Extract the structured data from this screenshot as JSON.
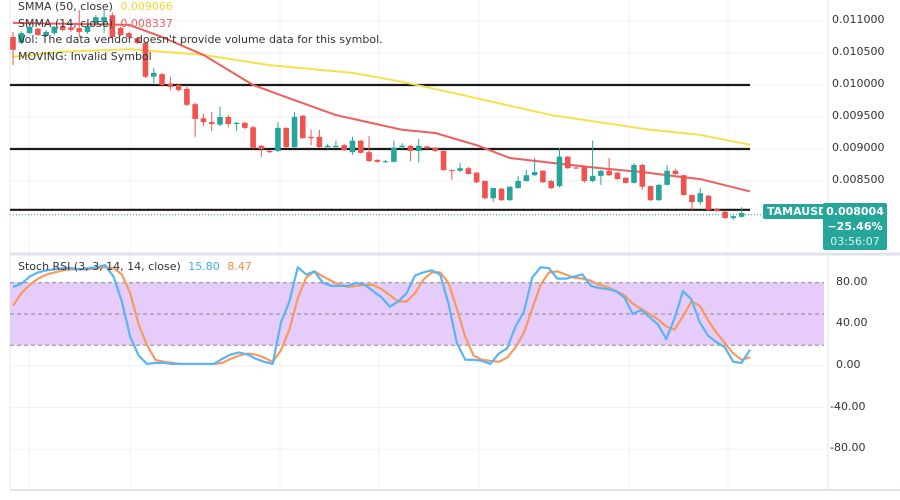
{
  "symbol": "TAMAUSD",
  "price_scale": {
    "labels": [
      "0.011000",
      "0.010500",
      "0.010000",
      "0.009500",
      "0.009000",
      "0.008500"
    ],
    "values": [
      0.011,
      0.0105,
      0.01,
      0.0095,
      0.009,
      0.0085
    ],
    "last_price": "0.008004",
    "change": "−25.46%",
    "countdown": "03:56:07"
  },
  "legend": {
    "smma50": {
      "label": "SMMA (50, close)",
      "value": "0.009066",
      "color": "#f7e14a"
    },
    "smma14": {
      "label": "SMMA (14, close)",
      "value": "0.008337",
      "color": "#f25c5c"
    },
    "vol": "Vol: The data vendor doesn't provide volume data for this symbol.",
    "moving": "MOVING: Invalid Symbol"
  },
  "colors": {
    "up": "#26a69a",
    "down": "#ef5350",
    "stoch_k": "#5ab3f5",
    "stoch_d": "#f79a5a",
    "band": "#e6ccfa",
    "level_lines": "#1a1a1a"
  },
  "horizontal_levels": [
    0.01,
    0.009,
    0.00805
  ],
  "candles": [
    [
      0.01075,
      0.01083,
      0.01031,
      0.01055
    ],
    [
      0.01066,
      0.01084,
      0.01064,
      0.01081
    ],
    [
      0.01081,
      0.01094,
      0.0108,
      0.01091
    ],
    [
      0.01088,
      0.01089,
      0.01077,
      0.01078
    ],
    [
      0.01078,
      0.01086,
      0.01075,
      0.01083
    ],
    [
      0.01081,
      0.01092,
      0.01078,
      0.01091
    ],
    [
      0.01091,
      0.01092,
      0.01084,
      0.01086
    ],
    [
      0.0109,
      0.01092,
      0.01083,
      0.01086
    ],
    [
      0.01089,
      0.01117,
      0.01075,
      0.01083
    ],
    [
      0.01083,
      0.01094,
      0.0108,
      0.01092
    ],
    [
      0.01097,
      0.01109,
      0.01095,
      0.01106
    ],
    [
      0.01098,
      0.01117,
      0.01081,
      0.01106
    ],
    [
      0.01109,
      0.01113,
      0.01072,
      0.01075
    ],
    [
      0.01089,
      0.01091,
      0.01077,
      0.01078
    ],
    [
      0.01081,
      0.01083,
      0.01073,
      0.01075
    ],
    [
      0.01073,
      0.01075,
      0.01064,
      0.01066
    ],
    [
      0.01066,
      0.01067,
      0.01011,
      0.01013
    ],
    [
      0.01013,
      0.01027,
      0.01003,
      0.01019
    ],
    [
      0.01017,
      0.01019,
      0.00998,
      0.01
    ],
    [
      0.01002,
      0.01013,
      0.00992,
      0.00997
    ],
    [
      0.01,
      0.01002,
      0.0099,
      0.00992
    ],
    [
      0.00994,
      0.00997,
      0.00967,
      0.00969
    ],
    [
      0.0097,
      0.00972,
      0.00919,
      0.00947
    ],
    [
      0.00948,
      0.00955,
      0.00936,
      0.00942
    ],
    [
      0.00942,
      0.00958,
      0.00928,
      0.00939
    ],
    [
      0.00938,
      0.00966,
      0.00936,
      0.0095
    ],
    [
      0.0095,
      0.00953,
      0.00934,
      0.00939
    ],
    [
      0.00939,
      0.00942,
      0.00928,
      0.00941
    ],
    [
      0.00941,
      0.00942,
      0.00931,
      0.00933
    ],
    [
      0.00934,
      0.00936,
      0.009,
      0.00902
    ],
    [
      0.00905,
      0.00906,
      0.00888,
      0.009
    ],
    [
      0.00897,
      0.00898,
      0.00894,
      0.00895
    ],
    [
      0.00897,
      0.00942,
      0.00895,
      0.00933
    ],
    [
      0.00933,
      0.00934,
      0.00902,
      0.00903
    ],
    [
      0.00903,
      0.00958,
      0.00902,
      0.0095
    ],
    [
      0.00952,
      0.00953,
      0.00916,
      0.00917
    ],
    [
      0.00919,
      0.0093,
      0.00906,
      0.00917
    ],
    [
      0.00919,
      0.0093,
      0.00902,
      0.00903
    ],
    [
      0.00903,
      0.00908,
      0.009,
      0.00905
    ],
    [
      0.00903,
      0.00913,
      0.00902,
      0.00905
    ],
    [
      0.00906,
      0.00908,
      0.00897,
      0.00898
    ],
    [
      0.00895,
      0.00919,
      0.00891,
      0.00913
    ],
    [
      0.00913,
      0.00914,
      0.00893,
      0.00894
    ],
    [
      0.00895,
      0.0092,
      0.0088,
      0.00881
    ],
    [
      0.00883,
      0.00884,
      0.00878,
      0.0088
    ],
    [
      0.0088,
      0.00883,
      0.00878,
      0.00881
    ],
    [
      0.0088,
      0.00913,
      0.00879,
      0.00902
    ],
    [
      0.00903,
      0.00909,
      0.009,
      0.00905
    ],
    [
      0.00905,
      0.00906,
      0.00881,
      0.00897
    ],
    [
      0.00897,
      0.00916,
      0.00879,
      0.00905
    ],
    [
      0.00904,
      0.00905,
      0.009,
      0.00901
    ],
    [
      0.00902,
      0.00903,
      0.00895,
      0.00897
    ],
    [
      0.00897,
      0.00898,
      0.00866,
      0.00867
    ],
    [
      0.00867,
      0.00868,
      0.00852,
      0.00866
    ],
    [
      0.00866,
      0.00878,
      0.00864,
      0.0087
    ],
    [
      0.0087,
      0.00872,
      0.0086,
      0.00861
    ],
    [
      0.00863,
      0.00864,
      0.00847,
      0.00848
    ],
    [
      0.0085,
      0.00851,
      0.00822,
      0.00823
    ],
    [
      0.00823,
      0.0084,
      0.00817,
      0.00839
    ],
    [
      0.00838,
      0.00839,
      0.00819,
      0.0082
    ],
    [
      0.0082,
      0.00842,
      0.00819,
      0.00841
    ],
    [
      0.00839,
      0.00858,
      0.00838,
      0.0085
    ],
    [
      0.0085,
      0.00867,
      0.00849,
      0.00859
    ],
    [
      0.00859,
      0.00886,
      0.00858,
      0.00864
    ],
    [
      0.00866,
      0.00867,
      0.00847,
      0.00848
    ],
    [
      0.0085,
      0.00852,
      0.00837,
      0.00839
    ],
    [
      0.00842,
      0.00902,
      0.0084,
      0.00888
    ],
    [
      0.00888,
      0.00889,
      0.00869,
      0.0087
    ],
    [
      0.00871,
      0.00875,
      0.00869,
      0.0087
    ],
    [
      0.00872,
      0.00873,
      0.00847,
      0.0085
    ],
    [
      0.0085,
      0.00913,
      0.00848,
      0.00858
    ],
    [
      0.00858,
      0.00867,
      0.00844,
      0.00866
    ],
    [
      0.00866,
      0.00886,
      0.00858,
      0.00859
    ],
    [
      0.00863,
      0.00864,
      0.00852,
      0.00853
    ],
    [
      0.00855,
      0.00856,
      0.00846,
      0.00847
    ],
    [
      0.00847,
      0.00878,
      0.00846,
      0.00875
    ],
    [
      0.00875,
      0.00877,
      0.00836,
      0.00841
    ],
    [
      0.00842,
      0.00843,
      0.00819,
      0.0082
    ],
    [
      0.0082,
      0.00845,
      0.00819,
      0.00844
    ],
    [
      0.00844,
      0.00875,
      0.00843,
      0.00866
    ],
    [
      0.00866,
      0.00869,
      0.0086,
      0.00861
    ],
    [
      0.00859,
      0.0086,
      0.00827,
      0.00828
    ],
    [
      0.00828,
      0.00829,
      0.00805,
      0.00817
    ],
    [
      0.00817,
      0.00839,
      0.00813,
      0.00831
    ],
    [
      0.00827,
      0.00828,
      0.00803,
      0.00805
    ],
    [
      0.00806,
      0.00808,
      0.00802,
      0.00803
    ],
    [
      0.00802,
      0.00803,
      0.00791,
      0.00792
    ],
    [
      0.00792,
      0.00796,
      0.00789,
      0.00795
    ],
    [
      0.00794,
      0.00809,
      0.00793,
      0.008
    ]
  ],
  "smma14_points": [
    [
      0,
      0.01097
    ],
    [
      14,
      0.01094
    ],
    [
      18,
      0.01075
    ],
    [
      23,
      0.01047
    ],
    [
      29,
      0.01
    ],
    [
      33,
      0.00981
    ],
    [
      39,
      0.00953
    ],
    [
      47,
      0.0093
    ],
    [
      51,
      0.00925
    ],
    [
      56,
      0.00906
    ],
    [
      60,
      0.00886
    ],
    [
      66,
      0.00877
    ],
    [
      71,
      0.0087
    ],
    [
      76,
      0.00864
    ],
    [
      79,
      0.00859
    ],
    [
      83,
      0.00853
    ],
    [
      89,
      0.008337
    ]
  ],
  "smma50_points": [
    [
      0,
      0.01044
    ],
    [
      6,
      0.01052
    ],
    [
      14,
      0.01056
    ],
    [
      23,
      0.01047
    ],
    [
      31,
      0.01031
    ],
    [
      41,
      0.01019
    ],
    [
      47,
      0.01005
    ],
    [
      53,
      0.00988
    ],
    [
      65,
      0.00953
    ],
    [
      77,
      0.0093
    ],
    [
      83,
      0.00922
    ],
    [
      89,
      0.009066
    ]
  ],
  "stoch": {
    "label": "Stoch RSI (3, 3, 14, 14, close)",
    "k_value": "15.80",
    "d_value": "8.47",
    "scale_labels": [
      "80.00",
      "40.00",
      "0.00",
      "-40.00",
      "-80.00"
    ],
    "scale_values": [
      80,
      40,
      0,
      -40,
      -80
    ],
    "band": [
      20,
      80
    ],
    "midline": 50,
    "k": [
      76,
      79,
      86,
      90,
      92,
      93,
      94,
      94,
      93,
      94,
      95,
      97,
      86,
      62,
      28,
      10,
      2,
      3,
      3,
      2,
      2,
      2,
      2,
      2,
      2,
      7,
      11,
      13,
      11,
      7,
      4,
      2,
      42,
      62,
      95,
      88,
      91,
      80,
      77,
      77,
      77,
      80,
      78,
      72,
      66,
      57,
      62,
      70,
      87,
      90,
      92,
      88,
      60,
      22,
      6,
      6,
      5,
      2,
      12,
      17,
      38,
      52,
      85,
      95,
      94,
      84,
      84,
      86,
      88,
      77,
      75,
      74,
      72,
      66,
      50,
      54,
      47,
      40,
      26,
      46,
      72,
      64,
      42,
      29,
      23,
      18,
      4,
      3,
      15.8
    ],
    "d": [
      58,
      70,
      78,
      84,
      88,
      90,
      92,
      93,
      93,
      93,
      94,
      95,
      94,
      88,
      70,
      40,
      20,
      6,
      4,
      3,
      2,
      2,
      2,
      2,
      2,
      3,
      7,
      10,
      12,
      11,
      8,
      4,
      15,
      35,
      65,
      85,
      91,
      86,
      82,
      78,
      76,
      77,
      78,
      78,
      74,
      68,
      62,
      62,
      70,
      83,
      90,
      90,
      80,
      55,
      28,
      10,
      6,
      5,
      4,
      8,
      18,
      32,
      55,
      78,
      90,
      91,
      88,
      85,
      84,
      82,
      78,
      76,
      72,
      68,
      60,
      55,
      50,
      45,
      38,
      35,
      48,
      62,
      58,
      44,
      32,
      22,
      12,
      6,
      8.47
    ]
  }
}
